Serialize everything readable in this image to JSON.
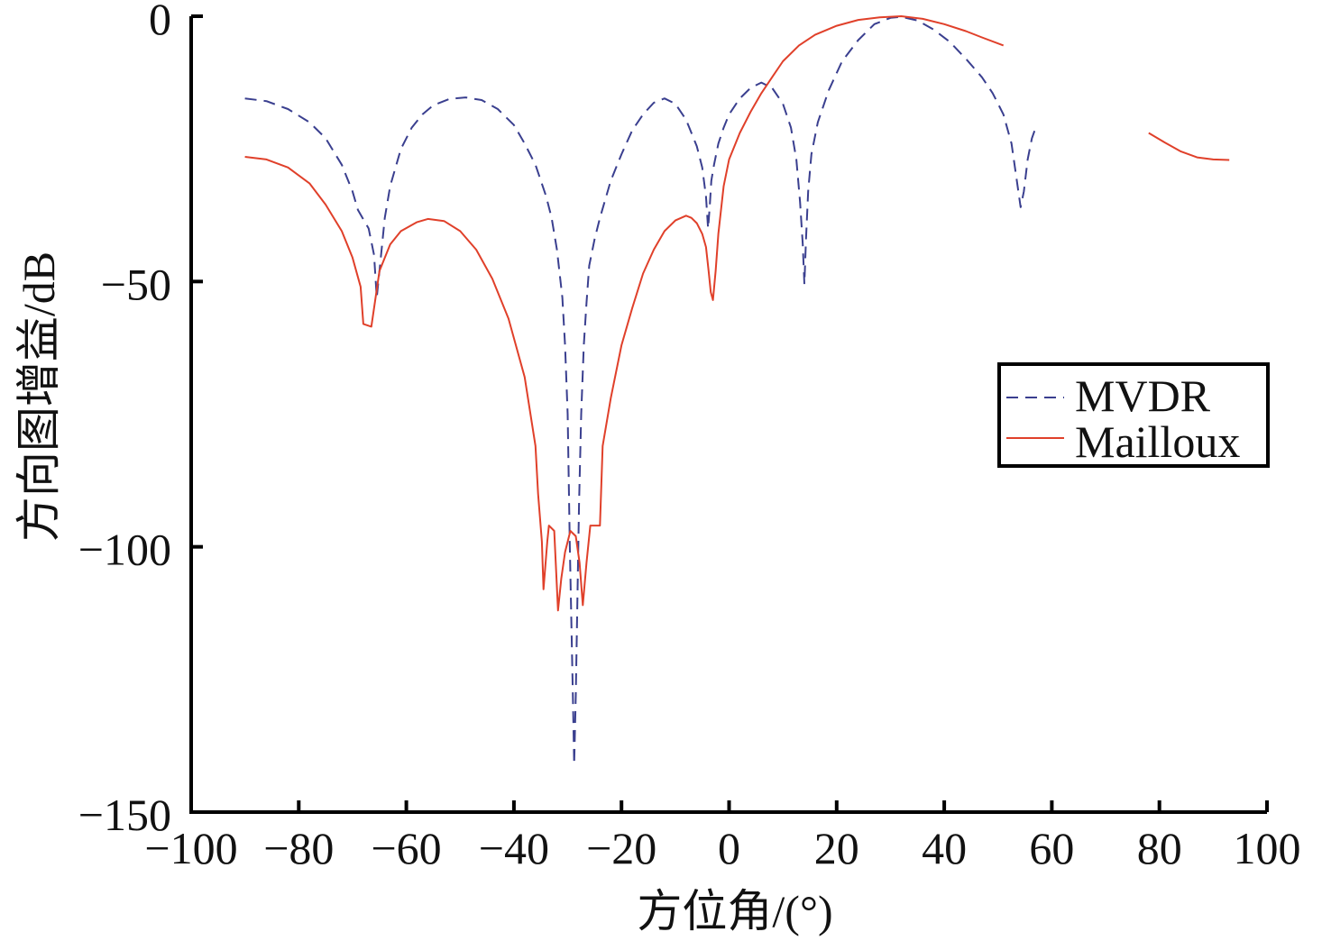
{
  "chart_data": {
    "type": "line",
    "title": "",
    "xlabel": "方位角/(°)",
    "ylabel": "方向图增益/dB",
    "xlim": [
      -100,
      100
    ],
    "ylim": [
      -150,
      0
    ],
    "x_ticks": [
      -100,
      -80,
      -60,
      -40,
      -20,
      0,
      20,
      40,
      60,
      80,
      100
    ],
    "x_tick_labels": [
      "−100",
      "−80",
      "−60",
      "−40",
      "−20",
      "0",
      "20",
      "40",
      "60",
      "80",
      "100"
    ],
    "y_ticks": [
      0,
      -50,
      -100,
      -150
    ],
    "y_tick_labels": [
      "0",
      "−50",
      "−100",
      "−150"
    ],
    "grid": false,
    "legend_position": "right",
    "series": [
      {
        "name": "MVDR",
        "style": "dashed",
        "color": "#3a3f8f",
        "segments": [
          [
            [
              -90,
              -15.5
            ],
            [
              -86,
              -16
            ],
            [
              -82,
              -17.5
            ],
            [
              -78,
              -20
            ],
            [
              -75,
              -23
            ],
            [
              -72,
              -28
            ],
            [
              -70,
              -33
            ],
            [
              -69,
              -36.5
            ],
            [
              -67,
              -40
            ],
            [
              -66,
              -45
            ],
            [
              -65.5,
              -53
            ],
            [
              -65,
              -48
            ],
            [
              -64,
              -38
            ],
            [
              -63,
              -32
            ],
            [
              -61,
              -25
            ],
            [
              -59,
              -21
            ],
            [
              -57,
              -18.5
            ],
            [
              -55,
              -16.8
            ],
            [
              -52,
              -15.6
            ],
            [
              -49,
              -15.3
            ],
            [
              -46,
              -15.8
            ],
            [
              -43,
              -17.5
            ],
            [
              -40,
              -20.5
            ],
            [
              -38,
              -24
            ],
            [
              -36,
              -28
            ],
            [
              -34,
              -34
            ],
            [
              -33,
              -38
            ],
            [
              -32,
              -44
            ],
            [
              -31,
              -53
            ],
            [
              -30.5,
              -62
            ],
            [
              -30,
              -75
            ],
            [
              -29.6,
              -100
            ],
            [
              -29.3,
              -115
            ],
            [
              -29,
              -130
            ],
            [
              -28.8,
              -141
            ],
            [
              -28.5,
              -128
            ],
            [
              -28.2,
              -110
            ],
            [
              -27.9,
              -92
            ],
            [
              -27.5,
              -75
            ],
            [
              -27,
              -62
            ],
            [
              -26.5,
              -54
            ],
            [
              -26,
              -47
            ],
            [
              -25,
              -42
            ],
            [
              -24,
              -38
            ],
            [
              -22,
              -31
            ],
            [
              -20,
              -26
            ],
            [
              -18,
              -21.5
            ],
            [
              -16,
              -18.5
            ],
            [
              -14,
              -16.3
            ],
            [
              -12,
              -15.5
            ],
            [
              -10,
              -16.5
            ],
            [
              -8,
              -19.5
            ],
            [
              -6,
              -24.5
            ],
            [
              -5,
              -28.5
            ],
            [
              -4.3,
              -34
            ],
            [
              -3.9,
              -40
            ],
            [
              -3.6,
              -36
            ],
            [
              -3.3,
              -31
            ],
            [
              -2.8,
              -28
            ],
            [
              -2,
              -24
            ],
            [
              -1,
              -21
            ],
            [
              0,
              -18.5
            ],
            [
              2,
              -15.5
            ],
            [
              4,
              -13.5
            ],
            [
              6,
              -12.5
            ],
            [
              8,
              -13.5
            ],
            [
              10,
              -16.5
            ],
            [
              11.5,
              -21
            ],
            [
              12.5,
              -27
            ],
            [
              13.2,
              -35
            ],
            [
              13.7,
              -43
            ],
            [
              14,
              -50.5
            ],
            [
              14.3,
              -42
            ],
            [
              14.7,
              -33
            ],
            [
              15.3,
              -26
            ],
            [
              16.5,
              -20
            ],
            [
              18.5,
              -14
            ],
            [
              21,
              -8.5
            ],
            [
              24,
              -4.5
            ],
            [
              27,
              -1.5
            ],
            [
              30,
              -0.3
            ],
            [
              32,
              -0.1
            ],
            [
              35,
              -0.8
            ],
            [
              38,
              -2.5
            ],
            [
              41,
              -4.8
            ],
            [
              44,
              -8
            ],
            [
              47,
              -11.5
            ],
            [
              49,
              -14.5
            ],
            [
              51,
              -18.5
            ],
            [
              52.5,
              -24
            ],
            [
              53.5,
              -31
            ],
            [
              54.2,
              -36
            ],
            [
              54.8,
              -33
            ],
            [
              55.5,
              -27
            ],
            [
              56.3,
              -23
            ],
            [
              57,
              -21
            ]
          ]
        ]
      },
      {
        "name": "Mailloux",
        "style": "solid",
        "color": "#e0402a",
        "segments": [
          [
            [
              -90,
              -26.5
            ],
            [
              -86,
              -27
            ],
            [
              -82,
              -28.5
            ],
            [
              -78,
              -31.5
            ],
            [
              -75,
              -35.5
            ],
            [
              -72,
              -40.5
            ],
            [
              -70,
              -45.5
            ],
            [
              -68.5,
              -51
            ],
            [
              -68,
              -58
            ],
            [
              -66.5,
              -58.5
            ],
            [
              -66,
              -55
            ],
            [
              -65,
              -48
            ],
            [
              -63,
              -43
            ],
            [
              -61,
              -40.5
            ],
            [
              -58,
              -38.8
            ],
            [
              -56,
              -38.2
            ],
            [
              -53,
              -38.6
            ],
            [
              -50,
              -40.5
            ],
            [
              -47,
              -44
            ],
            [
              -44,
              -49.5
            ],
            [
              -41,
              -57
            ],
            [
              -38,
              -68
            ],
            [
              -36,
              -81
            ],
            [
              -35.5,
              -90
            ],
            [
              -34.8,
              -99
            ],
            [
              -34.5,
              -108
            ],
            [
              -33.8,
              -99
            ],
            [
              -33.5,
              -96
            ],
            [
              -32.5,
              -97
            ],
            [
              -31.8,
              -112
            ],
            [
              -31.2,
              -106
            ],
            [
              -30.5,
              -101
            ],
            [
              -29.5,
              -97
            ],
            [
              -28.5,
              -98
            ],
            [
              -27.8,
              -103
            ],
            [
              -27.2,
              -111
            ],
            [
              -26.5,
              -103
            ],
            [
              -25.8,
              -96
            ],
            [
              -24,
              -96
            ],
            [
              -23.5,
              -81
            ],
            [
              -22,
              -72
            ],
            [
              -20,
              -62
            ],
            [
              -18,
              -55
            ],
            [
              -16,
              -48.5
            ],
            [
              -14,
              -44
            ],
            [
              -12,
              -40.5
            ],
            [
              -10,
              -38.5
            ],
            [
              -8,
              -37.6
            ],
            [
              -7,
              -38
            ],
            [
              -6,
              -39
            ],
            [
              -5,
              -41
            ],
            [
              -4.3,
              -43.5
            ],
            [
              -3.8,
              -48
            ],
            [
              -3.4,
              -52
            ],
            [
              -3,
              -53.5
            ],
            [
              -2.5,
              -48
            ],
            [
              -2,
              -41
            ],
            [
              -1,
              -32
            ],
            [
              0,
              -27
            ],
            [
              2,
              -22
            ],
            [
              4,
              -18
            ],
            [
              6,
              -14.5
            ],
            [
              8,
              -11.5
            ],
            [
              10,
              -8.5
            ],
            [
              13,
              -5.5
            ],
            [
              16,
              -3.5
            ],
            [
              20,
              -1.8
            ],
            [
              24,
              -0.7
            ],
            [
              28,
              -0.2
            ],
            [
              32,
              0
            ],
            [
              36,
              -0.5
            ],
            [
              40,
              -1.5
            ],
            [
              44,
              -2.8
            ],
            [
              47,
              -4
            ],
            [
              51,
              -5.5
            ]
          ],
          [
            [
              78,
              -22
            ],
            [
              81,
              -23.8
            ],
            [
              84,
              -25.5
            ],
            [
              87,
              -26.6
            ],
            [
              90,
              -27
            ],
            [
              93,
              -27.1
            ]
          ]
        ]
      }
    ]
  }
}
